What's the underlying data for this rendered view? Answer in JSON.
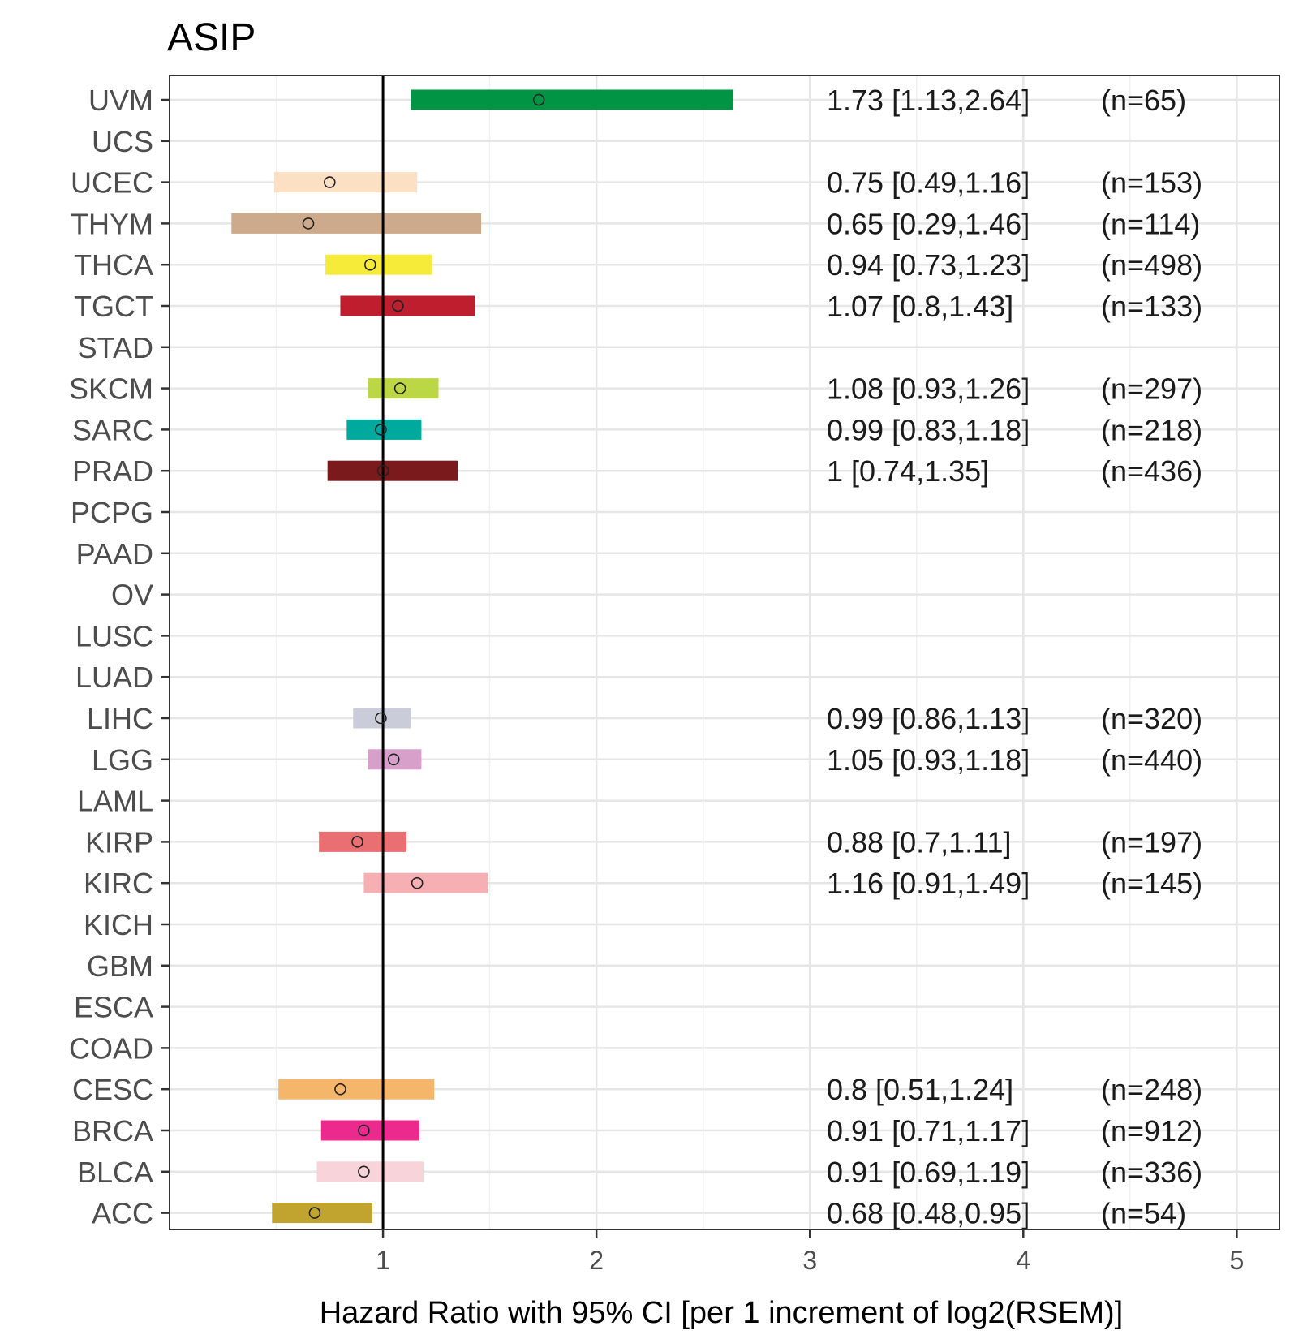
{
  "chart_data": {
    "type": "forest",
    "title": "ASIP",
    "xlabel": "Hazard Ratio with 95% CI [per 1 increment of log2(RSEM)]",
    "ylabel": "",
    "xlim": [
      0.0,
      5.2
    ],
    "xticks": [
      1,
      2,
      3,
      4,
      5
    ],
    "xtick_labels": [
      "1",
      "2",
      "3",
      "4",
      "5"
    ],
    "minor_gridlines": [
      0.5,
      1.5,
      2.5,
      3.5,
      4.5
    ],
    "reference_line": 1,
    "grid": true,
    "rows": [
      {
        "label": "UVM",
        "hr": 1.73,
        "lo": 1.13,
        "hi": 2.64,
        "text": "1.73 [1.13,2.64]",
        "n": "(n=65)",
        "color": "#009444"
      },
      {
        "label": "UCS",
        "hr": null
      },
      {
        "label": "UCEC",
        "hr": 0.75,
        "lo": 0.49,
        "hi": 1.16,
        "text": "0.75 [0.49,1.16]",
        "n": "(n=153)",
        "color": "#FBE0C4"
      },
      {
        "label": "THYM",
        "hr": 0.65,
        "lo": 0.29,
        "hi": 1.46,
        "text": "0.65 [0.29,1.46]",
        "n": "(n=114)",
        "color": "#CDAA8C"
      },
      {
        "label": "THCA",
        "hr": 0.94,
        "lo": 0.73,
        "hi": 1.23,
        "text": "0.94 [0.73,1.23]",
        "n": "(n=498)",
        "color": "#F7EB39"
      },
      {
        "label": "TGCT",
        "hr": 1.07,
        "lo": 0.8,
        "hi": 1.43,
        "text": "1.07 [0.8,1.43]",
        "n": "(n=133)",
        "color": "#BE1E2D"
      },
      {
        "label": "STAD",
        "hr": null
      },
      {
        "label": "SKCM",
        "hr": 1.08,
        "lo": 0.93,
        "hi": 1.26,
        "text": "1.08 [0.93,1.26]",
        "n": "(n=297)",
        "color": "#BBD746"
      },
      {
        "label": "SARC",
        "hr": 0.99,
        "lo": 0.83,
        "hi": 1.18,
        "text": "0.99 [0.83,1.18]",
        "n": "(n=218)",
        "color": "#00A99D"
      },
      {
        "label": "PRAD",
        "hr": 1.0,
        "lo": 0.74,
        "hi": 1.35,
        "text": "1 [0.74,1.35]",
        "n": "(n=436)",
        "color": "#7A1A1C"
      },
      {
        "label": "PCPG",
        "hr": null
      },
      {
        "label": "PAAD",
        "hr": null
      },
      {
        "label": "OV",
        "hr": null
      },
      {
        "label": "LUSC",
        "hr": null
      },
      {
        "label": "LUAD",
        "hr": null
      },
      {
        "label": "LIHC",
        "hr": 0.99,
        "lo": 0.86,
        "hi": 1.13,
        "text": "0.99 [0.86,1.13]",
        "n": "(n=320)",
        "color": "#CACCDA"
      },
      {
        "label": "LGG",
        "hr": 1.05,
        "lo": 0.93,
        "hi": 1.18,
        "text": "1.05 [0.93,1.18]",
        "n": "(n=440)",
        "color": "#D7A0CB"
      },
      {
        "label": "LAML",
        "hr": null
      },
      {
        "label": "KIRP",
        "hr": 0.88,
        "lo": 0.7,
        "hi": 1.11,
        "text": "0.88 [0.7,1.11]",
        "n": "(n=197)",
        "color": "#EA6F73"
      },
      {
        "label": "KIRC",
        "hr": 1.16,
        "lo": 0.91,
        "hi": 1.49,
        "text": "1.16 [0.91,1.49]",
        "n": "(n=145)",
        "color": "#F6AFB3"
      },
      {
        "label": "KICH",
        "hr": null
      },
      {
        "label": "GBM",
        "hr": null
      },
      {
        "label": "ESCA",
        "hr": null
      },
      {
        "label": "COAD",
        "hr": null
      },
      {
        "label": "CESC",
        "hr": 0.8,
        "lo": 0.51,
        "hi": 1.24,
        "text": "0.8 [0.51,1.24]",
        "n": "(n=248)",
        "color": "#F5B56A"
      },
      {
        "label": "BRCA",
        "hr": 0.91,
        "lo": 0.71,
        "hi": 1.17,
        "text": "0.91 [0.71,1.17]",
        "n": "(n=912)",
        "color": "#EC2A8E"
      },
      {
        "label": "BLCA",
        "hr": 0.91,
        "lo": 0.69,
        "hi": 1.19,
        "text": "0.91 [0.69,1.19]",
        "n": "(n=336)",
        "color": "#F9D3DA"
      },
      {
        "label": "ACC",
        "hr": 0.68,
        "lo": 0.48,
        "hi": 0.95,
        "text": "0.68 [0.48,0.95]",
        "n": "(n=54)",
        "color": "#C0A42F"
      }
    ]
  }
}
